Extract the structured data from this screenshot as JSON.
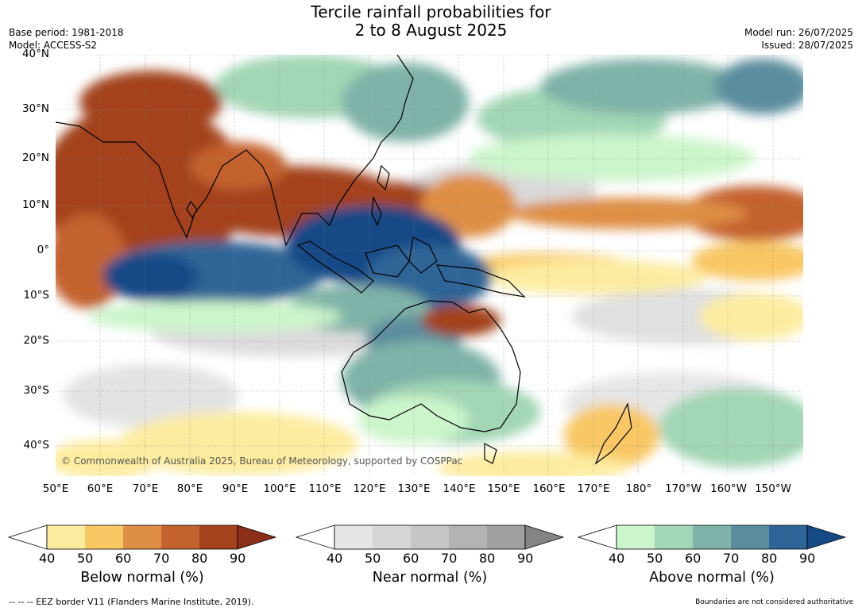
{
  "title": {
    "line1": "Tercile rainfall probabilities for",
    "line2": "2 to 8 August 2025"
  },
  "meta_left": {
    "base_period": "Base period: 1981-2018",
    "model": "Model: ACCESS-S2"
  },
  "meta_right": {
    "model_run": "Model run: 26/07/2025",
    "issued": "Issued: 28/07/2025"
  },
  "map": {
    "copyright": "© Commonwealth of Australia 2025, Bureau of Meteorology, supported by COSPPac",
    "lat_labels": [
      "40°N",
      "30°N",
      "20°N",
      "10°N",
      "0°",
      "10°S",
      "20°S",
      "30°S",
      "40°S"
    ],
    "lon_labels": [
      "50°E",
      "60°E",
      "70°E",
      "80°E",
      "90°E",
      "100°E",
      "110°E",
      "120°E",
      "130°E",
      "140°E",
      "150°E",
      "160°E",
      "170°E",
      "180°",
      "170°W",
      "160°W",
      "150°W"
    ]
  },
  "colorbars": [
    {
      "title": "Below normal (%)",
      "ticks": [
        "40",
        "50",
        "60",
        "70",
        "80",
        "90"
      ],
      "colors": [
        "#ffffff",
        "#fdeca0",
        "#f9c865",
        "#df8f45",
        "#c4622f",
        "#a3421d",
        "#8b2e17"
      ]
    },
    {
      "title": "Near normal (%)",
      "ticks": [
        "40",
        "50",
        "60",
        "70",
        "80",
        "90"
      ],
      "colors": [
        "#ffffff",
        "#e6e6e6",
        "#d6d6d6",
        "#c6c6c6",
        "#b3b3b3",
        "#a0a0a0",
        "#848484"
      ]
    },
    {
      "title": "Above normal (%)",
      "ticks": [
        "40",
        "50",
        "60",
        "70",
        "80",
        "90"
      ],
      "colors": [
        "#ffffff",
        "#ccf5cb",
        "#a2d6b6",
        "#7fb2a8",
        "#5a8d9e",
        "#2f6596",
        "#154a86"
      ]
    }
  ],
  "footer": {
    "eez": "--  --  -- EEZ border V11 (Flanders Marine Institute, 2019).",
    "boundaries": "Boundaries are not considered authoritative"
  }
}
